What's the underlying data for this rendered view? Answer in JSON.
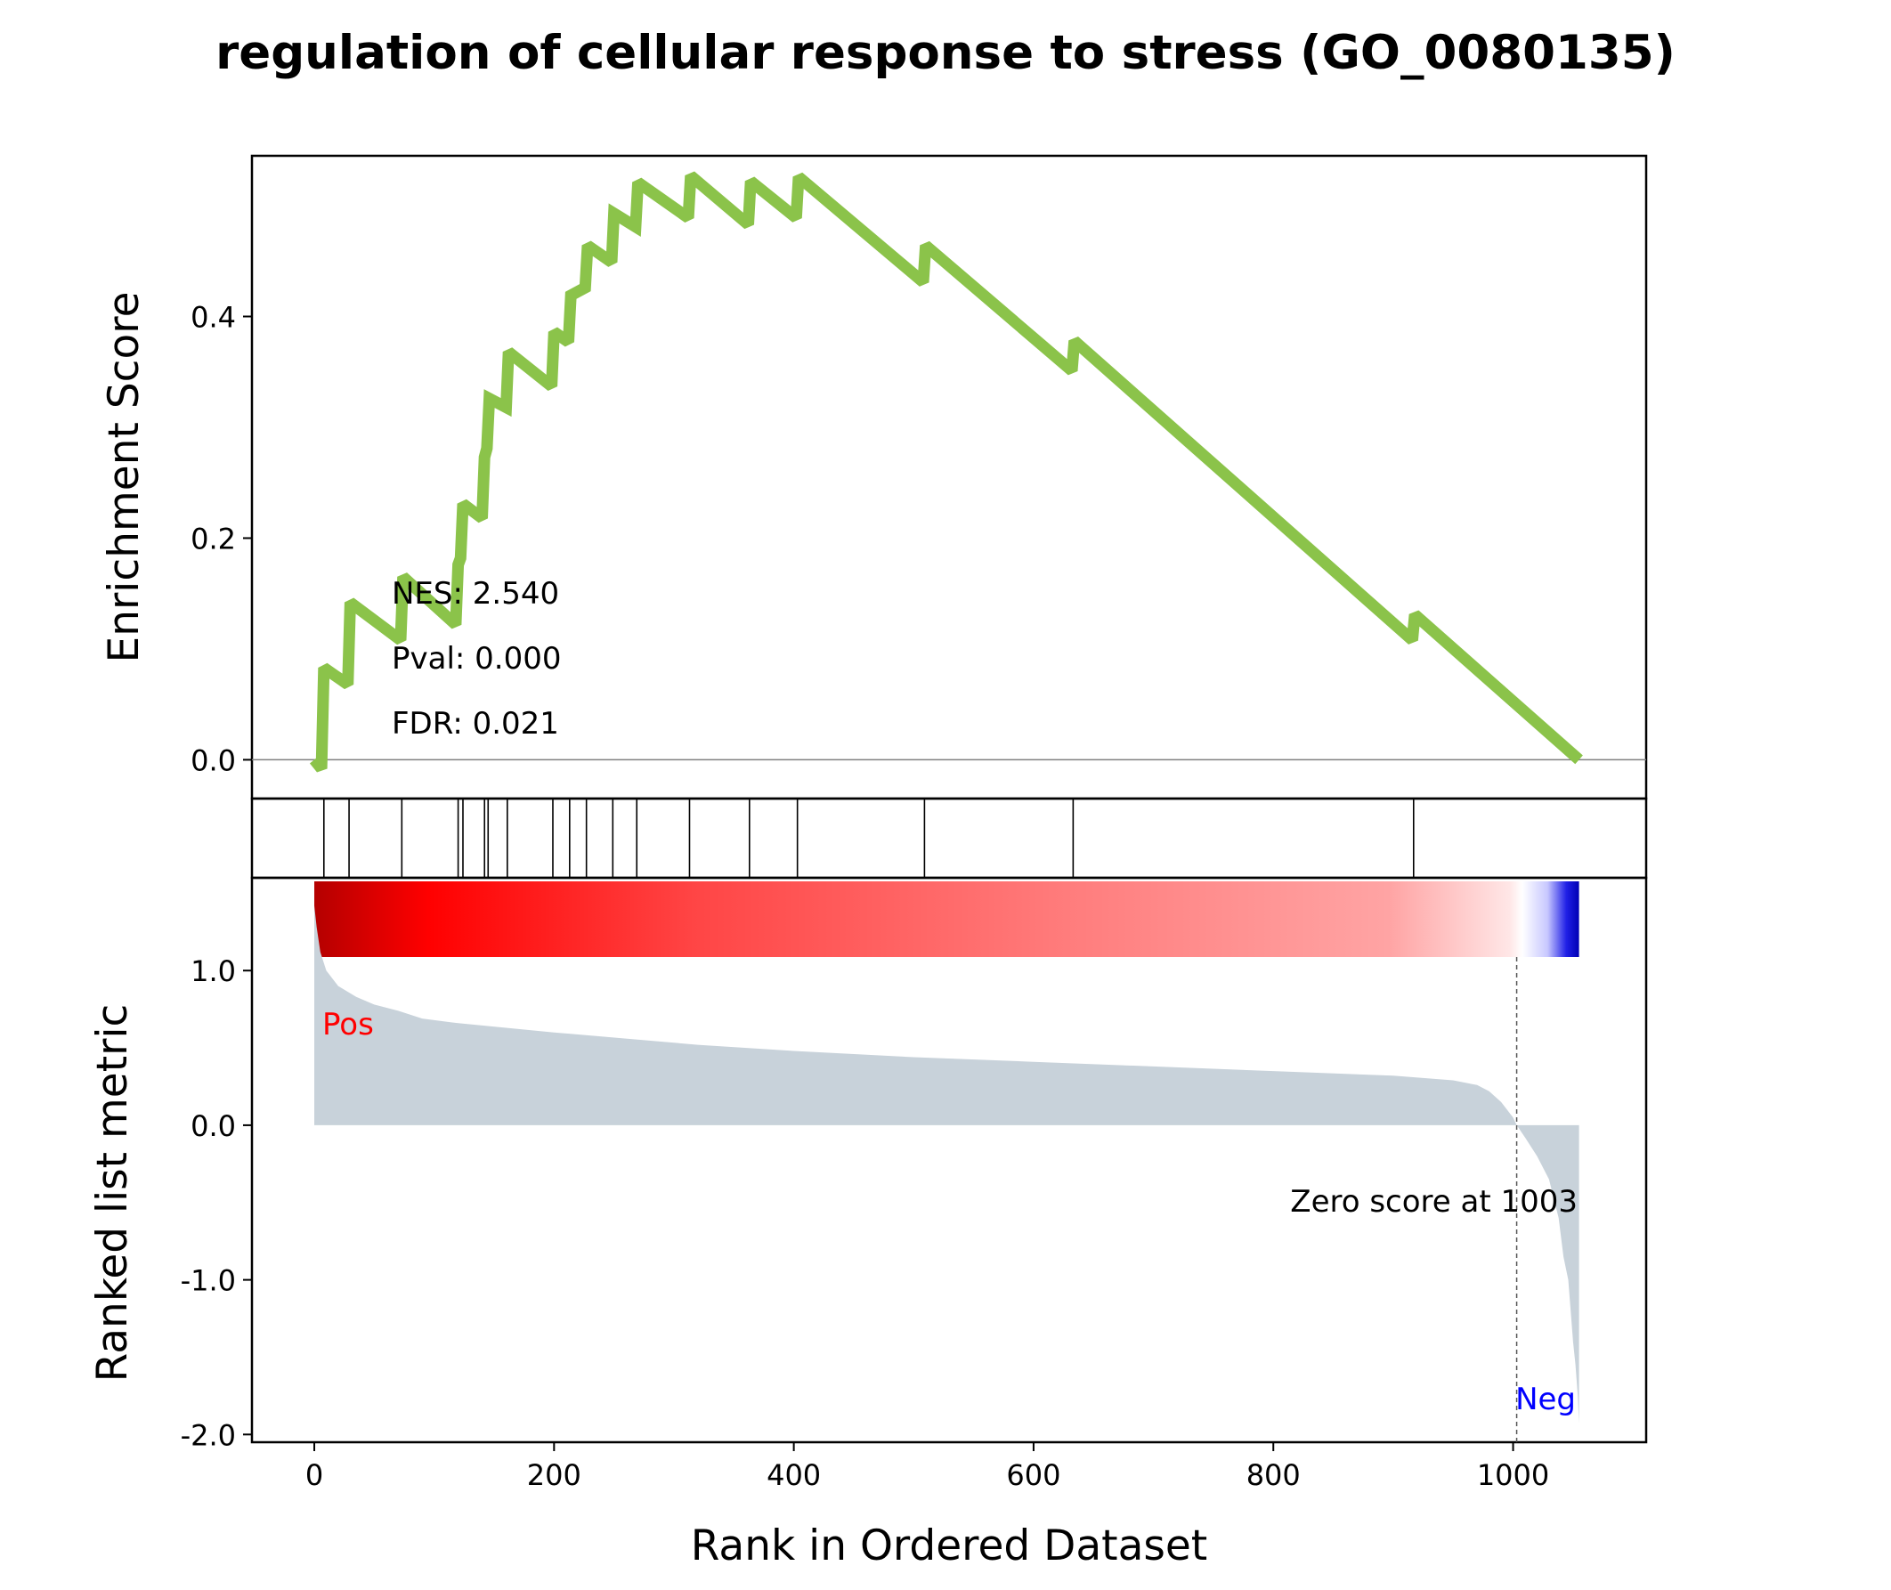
{
  "chart_data": {
    "type": "line",
    "title": "regulation of cellular response to stress (GO_0080135)",
    "xlabel": "Rank in Ordered Dataset",
    "xlim": [
      -52,
      1111
    ],
    "x_ticks": [
      0,
      200,
      400,
      600,
      800,
      1000
    ],
    "x_tick_labels": [
      "0",
      "200",
      "400",
      "600",
      "800",
      "1000"
    ],
    "panels": {
      "enrichment": {
        "ylabel": "Enrichment Score",
        "ylim": [
          -0.035,
          0.545
        ],
        "y_ticks": [
          0.0,
          0.2,
          0.4
        ],
        "y_tick_labels": [
          "0.0",
          "0.2",
          "0.4"
        ],
        "line_color": "#8bc34a",
        "zero_line": 0.0,
        "stats": [
          "NES: 2.540",
          "Pval: 0.000",
          "FDR: 0.021"
        ],
        "series": {
          "x": [
            0,
            6,
            8,
            28,
            30,
            72,
            74,
            118,
            120,
            122,
            124,
            140,
            142,
            144,
            146,
            160,
            162,
            198,
            200,
            212,
            214,
            226,
            228,
            248,
            250,
            268,
            270,
            312,
            314,
            362,
            364,
            402,
            404,
            508,
            510,
            632,
            634,
            916,
            918,
            1055
          ],
          "y": [
            0.0,
            -0.008,
            0.083,
            0.068,
            0.142,
            0.108,
            0.165,
            0.122,
            0.176,
            0.182,
            0.231,
            0.218,
            0.273,
            0.281,
            0.326,
            0.318,
            0.368,
            0.337,
            0.386,
            0.377,
            0.419,
            0.426,
            0.464,
            0.449,
            0.493,
            0.481,
            0.521,
            0.489,
            0.527,
            0.483,
            0.522,
            0.489,
            0.526,
            0.431,
            0.464,
            0.351,
            0.378,
            0.108,
            0.131,
            0.0
          ]
        }
      },
      "hits": {
        "positions": [
          8,
          29,
          73,
          120,
          124,
          142,
          145,
          161,
          199,
          213,
          227,
          249,
          269,
          313,
          363,
          403,
          509,
          633,
          917
        ]
      },
      "colorbar": {
        "stops": [
          {
            "offset": 0.0,
            "color": "#b40000"
          },
          {
            "offset": 0.09,
            "color": "#ff0000"
          },
          {
            "offset": 0.3,
            "color": "#ff4545"
          },
          {
            "offset": 0.6,
            "color": "#ff7d7d"
          },
          {
            "offset": 0.85,
            "color": "#ffa4a4"
          },
          {
            "offset": 0.945,
            "color": "#ffe6e6"
          },
          {
            "offset": 0.955,
            "color": "#ffffff"
          },
          {
            "offset": 0.975,
            "color": "#c8c8ff"
          },
          {
            "offset": 0.99,
            "color": "#2020e6"
          },
          {
            "offset": 1.0,
            "color": "#0000b4"
          }
        ]
      },
      "ranked_metric": {
        "ylabel": "Ranked list metric",
        "ylim": [
          -2.05,
          1.6
        ],
        "y_ticks": [
          1.0,
          0.0,
          -1.0,
          -2.0
        ],
        "y_tick_labels": [
          "1.0",
          "0.0",
          "-1.0",
          "-2.0"
        ],
        "fill_color": "#c8d2da",
        "zero_cross_rank": 1003,
        "zero_score_label": "Zero score at 1003",
        "pos_label": "Pos",
        "neg_label": "Neg",
        "pos_color": "#ff0000",
        "neg_color": "#0000ff",
        "series": {
          "x": [
            0,
            2,
            5,
            10,
            20,
            35,
            50,
            70,
            90,
            120,
            160,
            200,
            260,
            320,
            400,
            500,
            600,
            700,
            800,
            900,
            950,
            970,
            980,
            990,
            1000,
            1003,
            1010,
            1020,
            1030,
            1038,
            1042,
            1046,
            1048,
            1050,
            1052,
            1054,
            1055
          ],
          "y": [
            1.42,
            1.28,
            1.12,
            1.0,
            0.9,
            0.83,
            0.78,
            0.74,
            0.69,
            0.66,
            0.63,
            0.6,
            0.56,
            0.52,
            0.48,
            0.44,
            0.41,
            0.38,
            0.35,
            0.32,
            0.29,
            0.26,
            0.22,
            0.15,
            0.05,
            0.0,
            -0.08,
            -0.2,
            -0.35,
            -0.6,
            -0.85,
            -1.0,
            -1.2,
            -1.4,
            -1.55,
            -1.75,
            -1.93
          ]
        }
      }
    }
  }
}
